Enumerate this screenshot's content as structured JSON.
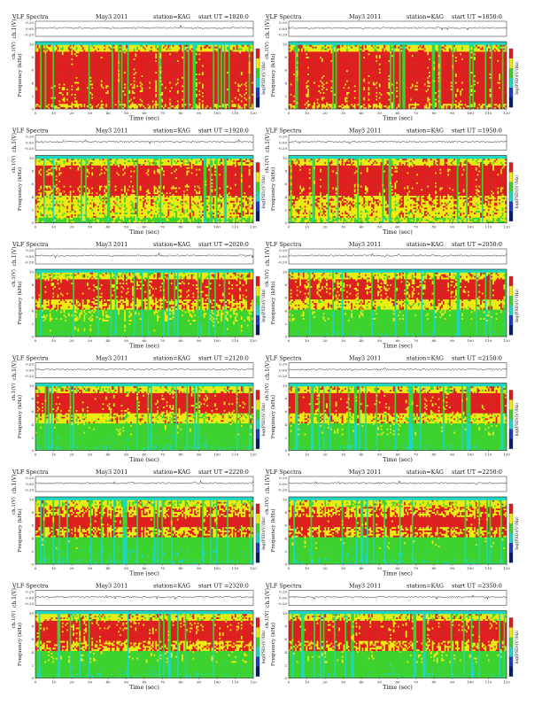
{
  "page": {
    "title_prefix": "VLF Spectra",
    "date_text": "May3 2011",
    "station_text": "station=KAG",
    "start_prefix": "start  UT ="
  },
  "axis_text": {
    "ch1_label": "ch.1(V)",
    "freq_label": "Frequency (kHz)",
    "time_label": "Time (sec)",
    "cbar_label": "log(PSD)(V²/Hz)",
    "wave_ticks": [
      "0.20",
      "0.00",
      "-0.20"
    ],
    "freq_ticks": [
      "0",
      "2",
      "4",
      "6",
      "8",
      "10"
    ],
    "time_ticks": [
      "0",
      "10",
      "20",
      "30",
      "40",
      "50",
      "60",
      "70",
      "80",
      "90",
      "100",
      "110",
      "120"
    ]
  },
  "colors": {
    "red": "#e21c1c",
    "yellow": "#f0ec0e",
    "green": "#3fd22c",
    "cyan": "#1fd7c0",
    "blue": "#1a3cc8",
    "navy": "#061a6e"
  },
  "chart_data": [
    {
      "type": "heatmap",
      "start_ut": "1820:0",
      "xlabel": "Time (sec)",
      "ylabel": "Frequency (kHz)",
      "xlim": [
        0,
        120
      ],
      "ylim": [
        0,
        10
      ],
      "intensity_profile": [
        0.72,
        0.95,
        0.98,
        0.95,
        0.9,
        0.92,
        0.8
      ]
    },
    {
      "type": "heatmap",
      "start_ut": "1850:0",
      "xlabel": "Time (sec)",
      "ylabel": "Frequency (kHz)",
      "xlim": [
        0,
        120
      ],
      "ylim": [
        0,
        10
      ],
      "intensity_profile": [
        0.72,
        0.95,
        0.98,
        0.95,
        0.9,
        0.92,
        0.8
      ]
    },
    {
      "type": "heatmap",
      "start_ut": "1920:0",
      "xlabel": "Time (sec)",
      "ylabel": "Frequency (kHz)",
      "xlim": [
        0,
        120
      ],
      "ylim": [
        0,
        10
      ],
      "intensity_profile": [
        0.7,
        0.9,
        0.96,
        0.88,
        0.72,
        0.7,
        0.55
      ]
    },
    {
      "type": "heatmap",
      "start_ut": "1950:0",
      "xlabel": "Time (sec)",
      "ylabel": "Frequency (kHz)",
      "xlim": [
        0,
        120
      ],
      "ylim": [
        0,
        10
      ],
      "intensity_profile": [
        0.72,
        0.92,
        0.96,
        0.9,
        0.75,
        0.72,
        0.6
      ]
    },
    {
      "type": "heatmap",
      "start_ut": "2020:0",
      "xlabel": "Time (sec)",
      "ylabel": "Frequency (kHz)",
      "xlim": [
        0,
        120
      ],
      "ylim": [
        0,
        10
      ],
      "intensity_profile": [
        0.7,
        0.9,
        0.92,
        0.78,
        0.55,
        0.45,
        0.35
      ]
    },
    {
      "type": "heatmap",
      "start_ut": "2050:0",
      "xlabel": "Time (sec)",
      "ylabel": "Frequency (kHz)",
      "xlim": [
        0,
        120
      ],
      "ylim": [
        0,
        10
      ],
      "intensity_profile": [
        0.72,
        0.88,
        0.9,
        0.72,
        0.5,
        0.4,
        0.32
      ]
    },
    {
      "type": "heatmap",
      "start_ut": "2120:0",
      "xlabel": "Time (sec)",
      "ylabel": "Frequency (kHz)",
      "xlim": [
        0,
        120
      ],
      "ylim": [
        0,
        10
      ],
      "intensity_profile": [
        0.7,
        0.95,
        0.9,
        0.7,
        0.45,
        0.35,
        0.28
      ]
    },
    {
      "type": "heatmap",
      "start_ut": "2150:0",
      "xlabel": "Time (sec)",
      "ylabel": "Frequency (kHz)",
      "xlim": [
        0,
        120
      ],
      "ylim": [
        0,
        10
      ],
      "intensity_profile": [
        0.72,
        0.95,
        0.92,
        0.72,
        0.48,
        0.38,
        0.3
      ]
    },
    {
      "type": "heatmap",
      "start_ut": "2220:0",
      "xlabel": "Time (sec)",
      "ylabel": "Frequency (kHz)",
      "xlim": [
        0,
        120
      ],
      "ylim": [
        0,
        10
      ],
      "intensity_profile": [
        0.66,
        0.78,
        0.95,
        0.78,
        0.42,
        0.32,
        0.26
      ]
    },
    {
      "type": "heatmap",
      "start_ut": "2250:0",
      "xlabel": "Time (sec)",
      "ylabel": "Frequency (kHz)",
      "xlim": [
        0,
        120
      ],
      "ylim": [
        0,
        10
      ],
      "intensity_profile": [
        0.68,
        0.8,
        0.95,
        0.8,
        0.45,
        0.34,
        0.28
      ]
    },
    {
      "type": "heatmap",
      "start_ut": "2320:0",
      "xlabel": "Time (sec)",
      "ylabel": "Frequency (kHz)",
      "xlim": [
        0,
        120
      ],
      "ylim": [
        0,
        10
      ],
      "intensity_profile": [
        0.7,
        0.9,
        0.95,
        0.8,
        0.48,
        0.36,
        0.3
      ]
    },
    {
      "type": "heatmap",
      "start_ut": "2350:0",
      "xlabel": "Time (sec)",
      "ylabel": "Frequency (kHz)",
      "xlim": [
        0,
        120
      ],
      "ylim": [
        0,
        10
      ],
      "intensity_profile": [
        0.7,
        0.9,
        0.95,
        0.8,
        0.48,
        0.36,
        0.3
      ]
    }
  ]
}
